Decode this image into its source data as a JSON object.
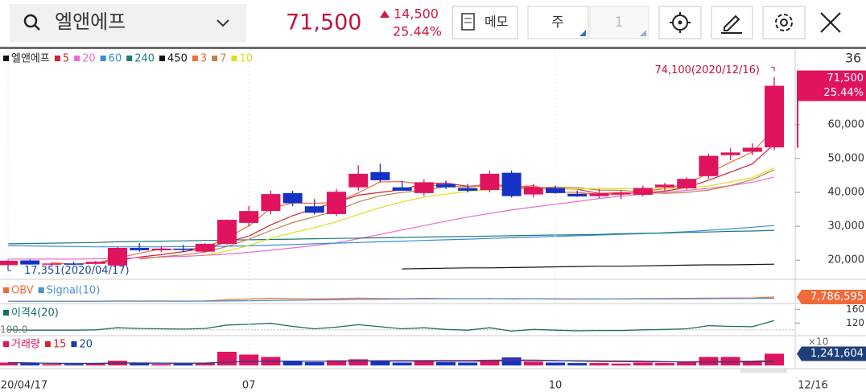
{
  "header": {
    "search": "엘앤에프",
    "price": "71,500",
    "change": "14,500",
    "change_pct": "25.44%",
    "memo": "메모",
    "period": "주",
    "period_count": "1"
  },
  "chart_data": {
    "type": "candlestick",
    "title": "엘앤에프",
    "categories": [
      "20/04/17",
      null,
      null,
      null,
      null,
      null,
      null,
      null,
      null,
      null,
      null,
      "07",
      null,
      null,
      null,
      null,
      null,
      null,
      null,
      null,
      null,
      null,
      null,
      null,
      null,
      "10",
      null,
      null,
      null,
      null,
      null,
      null,
      null,
      null,
      null,
      null
    ],
    "cursor_label": "12/16",
    "visible_count": 36,
    "up_color": "#e0135f",
    "down_color": "#1433c4",
    "open": [
      18500,
      19900,
      18700,
      19000,
      18900,
      18400,
      23600,
      22900,
      23400,
      22500,
      24800,
      31000,
      34500,
      39800,
      35900,
      33600,
      41500,
      46000,
      41500,
      39800,
      42500,
      41300,
      40700,
      45800,
      39400,
      41300,
      39600,
      38900,
      39400,
      39300,
      41500,
      41200,
      44800,
      51000,
      52000,
      53300
    ],
    "high": [
      20100,
      20200,
      19300,
      19500,
      19800,
      24000,
      25000,
      24000,
      24500,
      25000,
      32000,
      36000,
      40500,
      40500,
      38000,
      41000,
      48000,
      48500,
      43500,
      43800,
      43500,
      42500,
      46500,
      46500,
      42500,
      42000,
      40500,
      41000,
      40500,
      42000,
      42800,
      44500,
      51500,
      53000,
      54500,
      74100
    ],
    "low": [
      17351,
      18600,
      18300,
      18500,
      18600,
      18200,
      22500,
      22300,
      22400,
      22200,
      24500,
      30000,
      33500,
      36000,
      33500,
      33000,
      40500,
      43000,
      40500,
      39000,
      41000,
      40000,
      40000,
      38500,
      38500,
      39600,
      38700,
      38300,
      38000,
      38800,
      40500,
      40800,
      44000,
      49500,
      51000,
      52500
    ],
    "close": [
      19800,
      18700,
      19000,
      18800,
      19500,
      23600,
      22900,
      23400,
      23000,
      24800,
      31900,
      34500,
      39500,
      36800,
      34000,
      40200,
      45500,
      43600,
      40500,
      43000,
      41500,
      40500,
      45500,
      38900,
      41500,
      39800,
      38800,
      39700,
      39800,
      41300,
      42300,
      44000,
      50800,
      51800,
      53200,
      71500
    ],
    "ylim": [
      14800,
      82100
    ],
    "yticks": [
      {
        "value": 20000,
        "label": "20,000"
      },
      {
        "value": 30000,
        "label": "30,000"
      },
      {
        "value": 40000,
        "label": "40,000"
      },
      {
        "value": 50000,
        "label": "50,000"
      },
      {
        "value": 60000,
        "label": "60,000"
      }
    ],
    "last_price": {
      "value": 71500,
      "label": "71,500"
    },
    "last_change_pct": {
      "value": 25.44,
      "label": "25.44%"
    },
    "high_annotation": "74,100(2020/12/16)",
    "low_annotation": "17,351(2020/04/17)",
    "series": [
      {
        "name": "5",
        "color": "#d4232f",
        "values": [
          null,
          null,
          null,
          null,
          19160,
          19900,
          20900,
          21600,
          22500,
          23500,
          25300,
          27100,
          30400,
          33100,
          35300,
          37000,
          39200,
          40000,
          40800,
          42600,
          42800,
          41800,
          42300,
          41900,
          41500,
          41200,
          40900,
          39700,
          39900,
          39800,
          40400,
          41400,
          43600,
          46000,
          48400,
          54300
        ]
      },
      {
        "name": "20",
        "color": "#f06ac8",
        "values": [
          20300,
          20300,
          20300,
          20300,
          20400,
          20500,
          20700,
          20900,
          21100,
          21400,
          21800,
          22300,
          22900,
          23600,
          24300,
          25100,
          26300,
          27600,
          28900,
          30200,
          31500,
          32700,
          33800,
          34800,
          35700,
          36500,
          37300,
          38200,
          38900,
          39500,
          40000,
          40600,
          41200,
          42000,
          43000,
          44500
        ]
      },
      {
        "name": "60",
        "color": "#3a8ad8",
        "values": [
          24300,
          24200,
          24100,
          24000,
          23900,
          23900,
          23900,
          23900,
          24000,
          24000,
          24100,
          24200,
          24400,
          24600,
          24800,
          25000,
          25200,
          25400,
          25600,
          25800,
          26000,
          26200,
          26400,
          26600,
          26800,
          27000,
          27200,
          27400,
          27600,
          27800,
          28100,
          28400,
          28800,
          29200,
          29700,
          30200
        ]
      },
      {
        "name": "240",
        "color": "#1a7a7a",
        "values": [
          24800,
          24900,
          25000,
          25100,
          25200,
          25400,
          25500,
          25600,
          25700,
          25800,
          25900,
          26000,
          26100,
          26200,
          26300,
          26400,
          26500,
          26600,
          26700,
          26800,
          26900,
          27000,
          27100,
          27200,
          27300,
          27400,
          27500,
          27600,
          27800,
          27900,
          28000,
          28200,
          28300,
          28500,
          28600,
          28800
        ]
      },
      {
        "name": "450",
        "color": "#111111",
        "values": [
          null,
          null,
          null,
          null,
          null,
          null,
          null,
          null,
          null,
          null,
          null,
          null,
          null,
          null,
          null,
          null,
          null,
          null,
          17400,
          17500,
          17600,
          17700,
          17700,
          17800,
          17900,
          18000,
          18100,
          18200,
          18200,
          18300,
          18400,
          18500,
          18600,
          18600,
          18700,
          18800
        ]
      },
      {
        "name": "3",
        "color": "#f26a3a",
        "values": [
          null,
          null,
          19200,
          18800,
          19100,
          20600,
          22000,
          23300,
          23100,
          23700,
          26600,
          30100,
          35300,
          36900,
          36800,
          37000,
          39900,
          43100,
          43200,
          42400,
          41700,
          41700,
          42500,
          41600,
          42000,
          40100,
          40000,
          39400,
          39400,
          40300,
          41100,
          42500,
          45700,
          48900,
          51900,
          58800
        ]
      },
      {
        "name": "7",
        "color": "#c0804a",
        "values": [
          null,
          null,
          null,
          null,
          null,
          null,
          20300,
          21000,
          21500,
          22400,
          24000,
          26200,
          28700,
          31100,
          32800,
          34600,
          37200,
          39000,
          40000,
          40600,
          41700,
          41600,
          42100,
          41300,
          41300,
          41600,
          41400,
          40700,
          40600,
          40100,
          39700,
          40000,
          40700,
          42000,
          43800,
          46700
        ]
      },
      {
        "name": "10",
        "color": "#dede20",
        "values": [
          null,
          null,
          null,
          null,
          null,
          null,
          null,
          null,
          null,
          21500,
          22700,
          24300,
          26400,
          28100,
          29600,
          31300,
          33500,
          35500,
          37200,
          38600,
          39500,
          40300,
          40800,
          40800,
          41200,
          41000,
          41000,
          41200,
          41100,
          41200,
          41200,
          41300,
          41900,
          43100,
          44400,
          47300
        ]
      }
    ],
    "obv": {
      "ylim": [
        0,
        30000000
      ],
      "last_value_label": "7,786,595",
      "series": [
        {
          "name": "OBV",
          "color": "#f06a3c",
          "values": [
            2000000,
            1750000,
            1900000,
            1750000,
            1950000,
            2450000,
            2200000,
            2350000,
            2150000,
            2450000,
            3900000,
            5050000,
            5950000,
            5450000,
            5100000,
            5650000,
            6300000,
            5800000,
            5500000,
            5950000,
            5600000,
            5300000,
            5800000,
            4950000,
            5350000,
            5050000,
            4800000,
            5050000,
            5250000,
            5550000,
            5800000,
            5950000,
            6200000,
            6400000,
            6545000,
            7786595
          ]
        },
        {
          "name": "Signal(10)",
          "color": "#4a90d0",
          "values": [
            2000000,
            1900000,
            1900000,
            1850000,
            1870000,
            1970000,
            2000000,
            2050000,
            2060000,
            2100000,
            2300000,
            2630000,
            3030000,
            3330000,
            3630000,
            3940000,
            4320000,
            4660000,
            5000000,
            5250000,
            5450000,
            5500000,
            5480000,
            5420000,
            5390000,
            5330000,
            5230000,
            5160000,
            5130000,
            5140000,
            5160000,
            5240000,
            5420000,
            5660000,
            5820000,
            6060000
          ]
        }
      ]
    },
    "disparity": {
      "ylim": [
        90,
        170
      ],
      "yticks": [
        120,
        160
      ],
      "baseline": {
        "value": 100,
        "label": "100.0"
      },
      "series": [
        {
          "name": "이격4(20)",
          "color": "#1a6e64",
          "values": [
            100,
            99,
            99,
            99,
            100,
            106,
            104,
            103,
            102,
            104,
            114,
            116,
            119,
            110,
            103,
            108,
            115,
            109,
            103,
            106,
            101,
            99,
            106,
            96,
            101,
            99,
            97,
            98,
            98,
            100,
            101,
            103,
            112,
            110,
            109,
            127
          ]
        }
      ]
    },
    "volume": {
      "name": "거래량",
      "color": "#e0135f",
      "ylim": [
        0,
        2900000
      ],
      "scale_label": "×10",
      "last_value_label": "1,241,604",
      "values": [
        300000,
        250000,
        150000,
        150000,
        200000,
        500000,
        250000,
        150000,
        200000,
        300000,
        1450000,
        1150000,
        900000,
        500000,
        350000,
        550000,
        650000,
        500000,
        300000,
        450000,
        350000,
        300000,
        500000,
        850000,
        400000,
        300000,
        250000,
        250000,
        200000,
        300000,
        250000,
        350000,
        900000,
        900000,
        400000,
        1241604
      ],
      "series": [
        {
          "name": "15",
          "color": "#d4232f",
          "values": [
            300000,
            275000,
            233000,
            212000,
            210000,
            258000,
            257000,
            244000,
            239000,
            245000,
            354000,
            421000,
            458000,
            461000,
            453000,
            469000,
            479000,
            503000,
            513000,
            533000,
            525000,
            528000,
            551000,
            583000,
            573000,
            523000,
            463000,
            420000,
            400000,
            390000,
            377000,
            390000,
            416000,
            456000,
            463000,
            525000
          ]
        },
        {
          "name": "20",
          "color": "#1a3e9c",
          "values": [
            300000,
            275000,
            233000,
            212000,
            210000,
            258000,
            257000,
            244000,
            239000,
            245000,
            354000,
            421000,
            458000,
            461000,
            453000,
            457000,
            468000,
            470000,
            461000,
            460000,
            462000,
            455000,
            473000,
            508000,
            518000,
            504000,
            496000,
            487000,
            472000,
            464000,
            409000,
            369000,
            357000,
            377000,
            380000,
            424000
          ]
        }
      ]
    }
  }
}
